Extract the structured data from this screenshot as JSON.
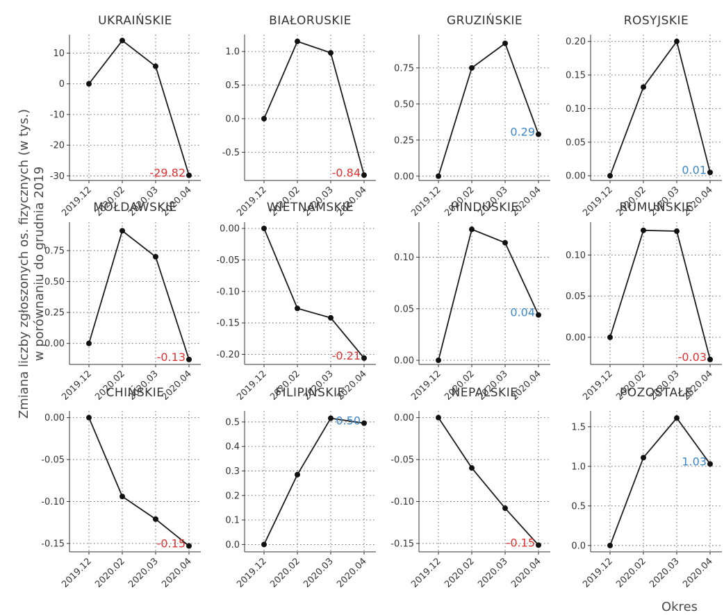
{
  "chart_data": {
    "type": "line",
    "layout": "small-multiples",
    "categories": [
      "2019.12",
      "2020.02",
      "2020.03",
      "2020.04"
    ],
    "ylabel": [
      "Zmiana liczby zgłoszonych os. fizycznych (w tys.)",
      "w porównaniu do grudnia 2019"
    ],
    "xlabel": "Okres",
    "grid": true,
    "colors": {
      "negative": "#e03030",
      "positive": "#3a86c8",
      "line": "#1a1a1a"
    },
    "panels": [
      {
        "title": "UKRAIŃSKIE",
        "values": [
          0,
          14.1,
          5.7,
          -29.82
        ],
        "ylim": [
          -31.5,
          16
        ],
        "yticks": [
          10,
          0,
          -10,
          -20,
          -30
        ],
        "ytick_labels": [
          "10",
          "0",
          "-10",
          "-20",
          "-30"
        ],
        "annotation": "-29.82",
        "sign": "negative"
      },
      {
        "title": "BIAŁORUSKIE",
        "values": [
          0,
          1.15,
          0.98,
          -0.84
        ],
        "ylim": [
          -0.92,
          1.25
        ],
        "yticks": [
          1.0,
          0.5,
          0.0,
          -0.5
        ],
        "ytick_labels": [
          "1.0",
          "0.5",
          "0.0",
          "-0.5"
        ],
        "annotation": "-0.84",
        "sign": "negative"
      },
      {
        "title": "GRUZIŃSKIE",
        "values": [
          0,
          0.75,
          0.92,
          0.29
        ],
        "ylim": [
          -0.03,
          0.98
        ],
        "yticks": [
          0.75,
          0.5,
          0.25,
          0.0
        ],
        "ytick_labels": [
          "0.75",
          "0.50",
          "0.25",
          "0.00"
        ],
        "annotation": "0.29",
        "sign": "positive"
      },
      {
        "title": "ROSYJSKIE",
        "values": [
          0,
          0.132,
          0.2,
          0.005
        ],
        "ylim": [
          -0.007,
          0.21
        ],
        "yticks": [
          0.2,
          0.15,
          0.1,
          0.05,
          0.0
        ],
        "ytick_labels": [
          "0.20",
          "0.15",
          "0.10",
          "0.05",
          "0.00"
        ],
        "annotation": "0.01",
        "sign": "positive"
      },
      {
        "title": "MOŁDAWSKIE",
        "values": [
          0,
          0.91,
          0.7,
          -0.13
        ],
        "ylim": [
          -0.17,
          0.98
        ],
        "yticks": [
          0.75,
          0.5,
          0.25,
          0.0
        ],
        "ytick_labels": [
          "0.75",
          "0.50",
          "0.25",
          "0.00"
        ],
        "annotation": "-0.13",
        "sign": "negative"
      },
      {
        "title": "WIETNAMSKIE",
        "values": [
          0,
          -0.127,
          -0.142,
          -0.206
        ],
        "ylim": [
          -0.216,
          0.01
        ],
        "yticks": [
          0.0,
          -0.05,
          -0.1,
          -0.15,
          -0.2
        ],
        "ytick_labels": [
          "0.00",
          "-0.05",
          "-0.10",
          "-0.15",
          "-0.20"
        ],
        "annotation": "-0.21",
        "sign": "negative"
      },
      {
        "title": "HINDUSKIE",
        "values": [
          0,
          0.127,
          0.114,
          0.044
        ],
        "ylim": [
          -0.004,
          0.134
        ],
        "yticks": [
          0.1,
          0.05,
          0.0
        ],
        "ytick_labels": [
          "0.10",
          "0.05",
          "0.00"
        ],
        "annotation": "0.04",
        "sign": "positive"
      },
      {
        "title": "RUMUŃSKIE",
        "values": [
          0,
          0.13,
          0.129,
          -0.027
        ],
        "ylim": [
          -0.033,
          0.14
        ],
        "yticks": [
          0.1,
          0.05,
          0.0
        ],
        "ytick_labels": [
          "0.10",
          "0.05",
          "0.00"
        ],
        "annotation": "-0.03",
        "sign": "negative"
      },
      {
        "title": "CHIŃSKIE",
        "values": [
          0,
          -0.094,
          -0.121,
          -0.153
        ],
        "ylim": [
          -0.16,
          0.008
        ],
        "yticks": [
          0.0,
          -0.05,
          -0.1,
          -0.15
        ],
        "ytick_labels": [
          "0.00",
          "-0.05",
          "-0.10",
          "-0.15"
        ],
        "annotation": "-0.15",
        "sign": "negative"
      },
      {
        "title": "FILIPIŃSKIE",
        "values": [
          0,
          0.285,
          0.515,
          0.495
        ],
        "ylim": [
          -0.03,
          0.545
        ],
        "yticks": [
          0.5,
          0.4,
          0.3,
          0.2,
          0.1,
          0.0
        ],
        "ytick_labels": [
          "0.5",
          "0.4",
          "0.3",
          "0.2",
          "0.1",
          "0.0"
        ],
        "annotation": "0.50",
        "sign": "positive"
      },
      {
        "title": "NEPALSKIE",
        "values": [
          0,
          -0.06,
          -0.108,
          -0.152
        ],
        "ylim": [
          -0.16,
          0.008
        ],
        "yticks": [
          0.0,
          -0.05,
          -0.1,
          -0.15
        ],
        "ytick_labels": [
          "0.00",
          "-0.05",
          "-0.10",
          "-0.15"
        ],
        "annotation": "-0.15",
        "sign": "negative"
      },
      {
        "title": "POZOSTAŁE",
        "values": [
          0,
          1.11,
          1.61,
          1.03
        ],
        "ylim": [
          -0.08,
          1.7
        ],
        "yticks": [
          1.5,
          1.0,
          0.5,
          0.0
        ],
        "ytick_labels": [
          "1.5",
          "1.0",
          "0.5",
          "0.0"
        ],
        "annotation": "1.03",
        "sign": "positive"
      }
    ]
  }
}
